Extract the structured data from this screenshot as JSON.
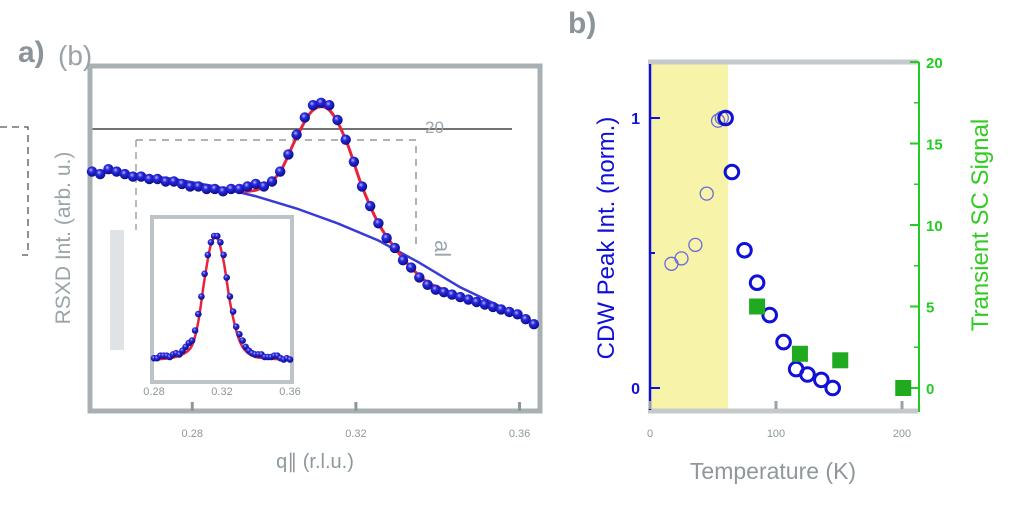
{
  "figure": {
    "panel_a_label": "a)",
    "panel_a_ghost_label": "(b)",
    "panel_b_label": "b)",
    "ghost_tick_20": "20",
    "ghost_text_al": "al"
  },
  "chart_data": [
    {
      "id": "panel-a",
      "type": "scatter",
      "title": "",
      "xlabel": "q∥ (r.l.u.)",
      "ylabel": "RSXD Int. (arb. u.)",
      "xlim": [
        0.255,
        0.365
      ],
      "ylim": [
        0,
        1.0
      ],
      "xticks": [
        0.28,
        0.32,
        0.36
      ],
      "xtick_labels": [
        "0.28",
        "0.32",
        "0.36"
      ],
      "grid": false,
      "series": [
        {
          "name": "data",
          "style": "blue spheres",
          "color": "#1a1ad4",
          "x": [
            0.2555,
            0.2575,
            0.2595,
            0.2615,
            0.2635,
            0.2655,
            0.2675,
            0.2695,
            0.2715,
            0.2735,
            0.2755,
            0.2775,
            0.2795,
            0.2815,
            0.2835,
            0.2855,
            0.2875,
            0.2895,
            0.2915,
            0.2935,
            0.2955,
            0.2975,
            0.2995,
            0.3015,
            0.3035,
            0.3055,
            0.3075,
            0.3095,
            0.3115,
            0.3135,
            0.3155,
            0.3175,
            0.3195,
            0.3215,
            0.3235,
            0.3255,
            0.3275,
            0.3295,
            0.3315,
            0.3335,
            0.3355,
            0.3375,
            0.3395,
            0.3415,
            0.3435,
            0.3455,
            0.3475,
            0.3495,
            0.3515,
            0.3535,
            0.3555,
            0.3575,
            0.3595,
            0.3615,
            0.3635
          ],
          "y": [
            0.66,
            0.65,
            0.67,
            0.66,
            0.65,
            0.64,
            0.64,
            0.63,
            0.63,
            0.62,
            0.62,
            0.61,
            0.6,
            0.6,
            0.59,
            0.59,
            0.58,
            0.59,
            0.59,
            0.6,
            0.61,
            0.6,
            0.62,
            0.66,
            0.73,
            0.81,
            0.88,
            0.93,
            0.94,
            0.93,
            0.87,
            0.79,
            0.7,
            0.6,
            0.52,
            0.45,
            0.39,
            0.35,
            0.3,
            0.27,
            0.23,
            0.2,
            0.18,
            0.17,
            0.16,
            0.15,
            0.14,
            0.13,
            0.12,
            0.11,
            0.1,
            0.09,
            0.08,
            0.06,
            0.04
          ]
        },
        {
          "name": "fit",
          "style": "red line",
          "color": "#e8233c",
          "x": [
            0.2555,
            0.2655,
            0.2755,
            0.2855,
            0.2935,
            0.2975,
            0.3015,
            0.3055,
            0.3095,
            0.3135,
            0.3175,
            0.3215,
            0.3255,
            0.3295,
            0.3335,
            0.3375,
            0.3415,
            0.3455,
            0.3495,
            0.3535,
            0.3575,
            0.3635
          ],
          "y": [
            0.66,
            0.65,
            0.62,
            0.59,
            0.58,
            0.6,
            0.66,
            0.8,
            0.91,
            0.91,
            0.79,
            0.6,
            0.45,
            0.35,
            0.27,
            0.21,
            0.18,
            0.15,
            0.13,
            0.11,
            0.09,
            0.04
          ]
        },
        {
          "name": "background",
          "style": "blue line",
          "color": "#3a3ad8",
          "x": [
            0.2555,
            0.2655,
            0.2755,
            0.2855,
            0.2955,
            0.3055,
            0.3155,
            0.3255,
            0.3355,
            0.3455,
            0.3555,
            0.3635
          ],
          "y": [
            0.66,
            0.65,
            0.63,
            0.6,
            0.56,
            0.51,
            0.45,
            0.38,
            0.29,
            0.19,
            0.11,
            0.04
          ]
        }
      ],
      "inset": {
        "type": "scatter",
        "description": "background-subtracted CDW peak",
        "xticks_labels": [
          "0.28",
          "0.32",
          "0.36"
        ],
        "series": [
          {
            "name": "data",
            "color": "#1a1ad4",
            "x": [
              0,
              1,
              2,
              3,
              4,
              5,
              6,
              7,
              8,
              9,
              10,
              11,
              12,
              13,
              14,
              15,
              16,
              17,
              18,
              19,
              20,
              21,
              22,
              23,
              24,
              25,
              26,
              27,
              28,
              29,
              30,
              31,
              32,
              33,
              34,
              35,
              36,
              37,
              38,
              39,
              40,
              41,
              42,
              43
            ],
            "y": [
              0.03,
              0.03,
              0.05,
              0.05,
              0.05,
              0.04,
              0.06,
              0.07,
              0.06,
              0.09,
              0.12,
              0.15,
              0.17,
              0.25,
              0.38,
              0.52,
              0.7,
              0.85,
              0.95,
              1.0,
              1.0,
              0.95,
              0.85,
              0.67,
              0.52,
              0.4,
              0.28,
              0.22,
              0.17,
              0.12,
              0.09,
              0.07,
              0.06,
              0.06,
              0.06,
              0.04,
              0.04,
              0.04,
              0.05,
              0.05,
              0.03,
              0.02,
              0.03,
              0.02
            ]
          },
          {
            "name": "fit",
            "color": "#e8233c",
            "x": [
              0,
              5,
              9,
              12,
              14,
              16,
              18,
              20,
              22,
              24,
              26,
              28,
              31,
              35,
              43
            ],
            "y": [
              0.02,
              0.03,
              0.06,
              0.13,
              0.32,
              0.66,
              0.93,
              0.98,
              0.8,
              0.48,
              0.25,
              0.12,
              0.05,
              0.03,
              0.02
            ]
          }
        ]
      }
    },
    {
      "id": "panel-b",
      "type": "scatter",
      "title": "",
      "xlabel": "Temperature (K)",
      "ylabel_left": "CDW Peak Int. (norm.)",
      "ylabel_right": "Transient SC Signal",
      "xlim": [
        0,
        210
      ],
      "ylim_left": [
        -0.12,
        1.2
      ],
      "ylim_right": [
        -1.6,
        20
      ],
      "xticks": [
        0,
        100,
        200
      ],
      "xtick_labels": [
        "0",
        "100",
        "200"
      ],
      "yticks_left": [
        0,
        1
      ],
      "yticks_left_labels": [
        "0",
        "1"
      ],
      "yticks_right": [
        0,
        5,
        10,
        15,
        20
      ],
      "yticks_right_labels": [
        "0",
        "5",
        "10",
        "15",
        "20"
      ],
      "shaded_region": {
        "x_from": 0,
        "x_to": 62,
        "color": "#f7f3a8"
      },
      "colors": {
        "left_axis": "#1010d8",
        "right_axis": "#22cc22"
      },
      "series": [
        {
          "name": "CDW Peak Int. (faded, in shaded region)",
          "marker": "open-circle",
          "axis": "left",
          "color": "#6a6ad8",
          "x": [
            17,
            25,
            36,
            45,
            54,
            57
          ],
          "y": [
            0.46,
            0.48,
            0.53,
            0.72,
            0.99,
            1.0
          ]
        },
        {
          "name": "CDW Peak Int.",
          "marker": "open-circle",
          "axis": "left",
          "color": "#1010d8",
          "x": [
            60,
            65,
            75,
            85,
            95,
            106,
            116,
            125,
            136,
            145
          ],
          "y": [
            1.0,
            0.8,
            0.51,
            0.39,
            0.27,
            0.17,
            0.07,
            0.05,
            0.03,
            0.0
          ]
        },
        {
          "name": "Transient SC Signal",
          "marker": "filled-square",
          "axis": "right",
          "color": "#1faa1f",
          "x": [
            85,
            119,
            151,
            201
          ],
          "y": [
            5.0,
            2.1,
            1.7,
            0.0
          ]
        }
      ]
    }
  ]
}
